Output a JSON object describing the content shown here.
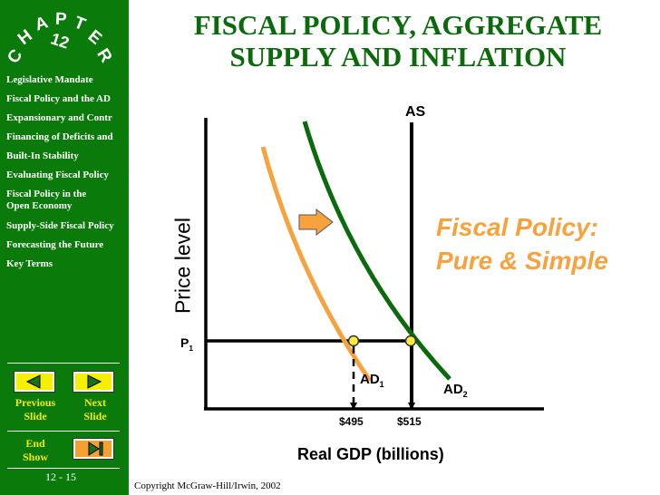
{
  "colors": {
    "sidebar": "#0a7a0a",
    "title": "#0b6a0b",
    "ad1": "#f7a23d",
    "ad2": "#0b6a0b",
    "button": "#f5f000",
    "point": "#ffec3d"
  },
  "sidebar": {
    "chapter_word": [
      "C",
      "H",
      "A",
      "P",
      "T",
      "E",
      "R"
    ],
    "chapter_number": "12",
    "items": [
      {
        "label": "Legislative Mandate"
      },
      {
        "label": "Fiscal Policy and the AD"
      },
      {
        "label": "Expansionary and Contr"
      },
      {
        "label": "Financing of Deficits and"
      },
      {
        "label": "Built-In Stability"
      },
      {
        "label": "Evaluating Fiscal Policy"
      },
      {
        "label": "Fiscal Policy in the Open Economy"
      },
      {
        "label": "Supply-Side Fiscal Policy"
      },
      {
        "label": "Forecasting the Future"
      },
      {
        "label": "Key Terms"
      }
    ],
    "previous_label": "Previous Slide",
    "next_label": "Next Slide",
    "end_label": "End Show",
    "page": "12 - 15"
  },
  "title_line1": "FISCAL POLICY, AGGREGATE",
  "title_line2": "SUPPLY AND INFLATION",
  "diagram": {
    "as_label": "AS",
    "ylabel": "Price level",
    "xlabel": "Real GDP (billions)",
    "p1_label": "P",
    "p1_sub": "1",
    "ad1_label": "AD",
    "ad1_sub": "1",
    "ad2_label": "AD",
    "ad2_sub": "2",
    "x_495": "$495",
    "x_515": "$515",
    "caption_line1": "Fiscal Policy:",
    "caption_line2": "Pure & Simple"
  },
  "copyright": "Copyright McGraw-Hill/Irwin,  2002"
}
